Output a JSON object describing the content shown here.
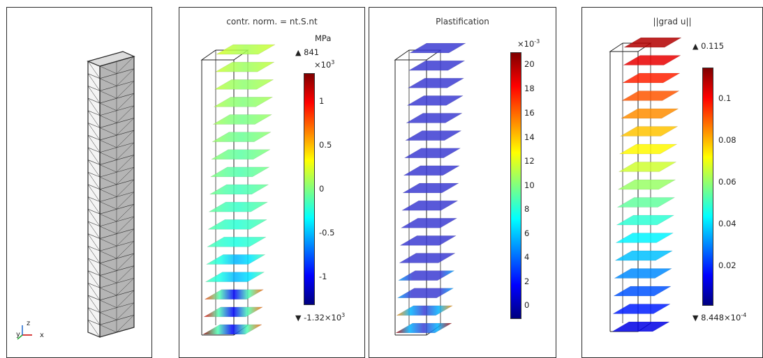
{
  "mesh_panel": {
    "axis_labels": {
      "y": "y",
      "z": "z",
      "x": "x"
    }
  },
  "stress_panel": {
    "title": "contr. norm. = nt.S.nt",
    "unit": "MPa",
    "max_marker": "▲",
    "max_value": "841",
    "scale_base": "×10",
    "scale_exp": "3",
    "ticks": [
      "1",
      "0.5",
      "0",
      "-0.5",
      "-1"
    ],
    "min_marker": "▼",
    "min_value": "-1.32×10",
    "min_exp": "3"
  },
  "plast_panel": {
    "title": "Plastification",
    "scale_base": "×10",
    "scale_exp": "-3",
    "ticks": [
      "20",
      "18",
      "16",
      "14",
      "12",
      "10",
      "8",
      "6",
      "4",
      "2",
      "0"
    ]
  },
  "grad_panel": {
    "title": "||grad u||",
    "max_marker": "▲",
    "max_value": "0.115",
    "ticks": [
      "0.1",
      "0.08",
      "0.06",
      "0.04",
      "0.02"
    ],
    "min_marker": "▼",
    "min_value": "8.448×10",
    "min_exp": "-4"
  },
  "colors": {
    "rainbow": [
      "#00007f",
      "#0000ff",
      "#0080ff",
      "#00ffff",
      "#80ff80",
      "#ffff00",
      "#ff8000",
      "#ff0000",
      "#7f0000"
    ],
    "mesh_fill": "#b5b5b5",
    "plast_slice": "#3c3cd2"
  }
}
